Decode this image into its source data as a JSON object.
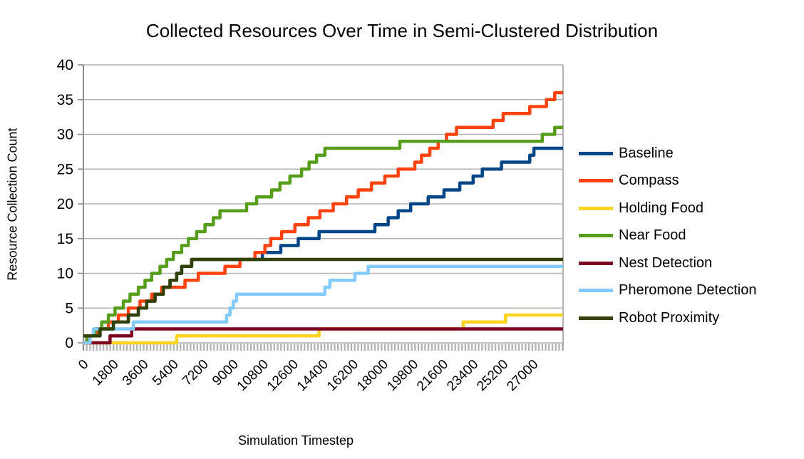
{
  "chart_data": {
    "type": "line",
    "subtype": "step",
    "title": "Collected Resources Over Time in Semi-Clustered Distribution",
    "xlabel": "Simulation Timestep",
    "ylabel": "Resource Collection Count",
    "xlim": [
      0,
      28800
    ],
    "ylim": [
      0,
      40
    ],
    "x_ticks": [
      0,
      1800,
      3600,
      5400,
      7200,
      9000,
      10800,
      12600,
      14400,
      16200,
      18000,
      19800,
      21600,
      23400,
      25200,
      27000
    ],
    "y_ticks": [
      0,
      5,
      10,
      15,
      20,
      25,
      30,
      35,
      40
    ],
    "grid": "horizontal",
    "legend_position": "right",
    "series": [
      {
        "name": "Baseline",
        "color": "#004586",
        "final_value": 28,
        "steps": [
          [
            0,
            1
          ],
          [
            1000,
            2
          ],
          [
            1800,
            3
          ],
          [
            2700,
            4
          ],
          [
            3300,
            5
          ],
          [
            3800,
            6
          ],
          [
            4300,
            7
          ],
          [
            4800,
            8
          ],
          [
            5200,
            9
          ],
          [
            5600,
            10
          ],
          [
            5900,
            11
          ],
          [
            6500,
            12
          ],
          [
            10750,
            13
          ],
          [
            11850,
            14
          ],
          [
            12900,
            15
          ],
          [
            14150,
            16
          ],
          [
            17500,
            17
          ],
          [
            18300,
            18
          ],
          [
            18900,
            19
          ],
          [
            19650,
            20
          ],
          [
            20700,
            21
          ],
          [
            21650,
            22
          ],
          [
            22600,
            23
          ],
          [
            23400,
            24
          ],
          [
            23950,
            25
          ],
          [
            25100,
            26
          ],
          [
            26800,
            27
          ],
          [
            27050,
            28
          ]
        ]
      },
      {
        "name": "Compass",
        "color": "#FF420E",
        "final_value": 36,
        "steps": [
          [
            0,
            0
          ],
          [
            300,
            1
          ],
          [
            800,
            2
          ],
          [
            1500,
            3
          ],
          [
            2100,
            4
          ],
          [
            2700,
            5
          ],
          [
            3400,
            6
          ],
          [
            4100,
            7
          ],
          [
            4700,
            8
          ],
          [
            6100,
            9
          ],
          [
            6900,
            10
          ],
          [
            8500,
            11
          ],
          [
            9400,
            12
          ],
          [
            10300,
            13
          ],
          [
            10900,
            14
          ],
          [
            11250,
            15
          ],
          [
            11900,
            16
          ],
          [
            12700,
            17
          ],
          [
            13500,
            18
          ],
          [
            14200,
            19
          ],
          [
            15000,
            20
          ],
          [
            15800,
            21
          ],
          [
            16500,
            22
          ],
          [
            17300,
            23
          ],
          [
            18100,
            24
          ],
          [
            18900,
            25
          ],
          [
            19900,
            26
          ],
          [
            20300,
            27
          ],
          [
            20800,
            28
          ],
          [
            21300,
            29
          ],
          [
            21800,
            30
          ],
          [
            22400,
            31
          ],
          [
            24600,
            32
          ],
          [
            25200,
            33
          ],
          [
            26800,
            34
          ],
          [
            27800,
            35
          ],
          [
            28300,
            36
          ]
        ]
      },
      {
        "name": "Holding Food",
        "color": "#FFD320",
        "final_value": 4,
        "steps": [
          [
            0,
            0
          ],
          [
            5600,
            1
          ],
          [
            14150,
            2
          ],
          [
            22800,
            3
          ],
          [
            25350,
            4
          ]
        ]
      },
      {
        "name": "Near Food",
        "color": "#579D1C",
        "final_value": 31,
        "steps": [
          [
            0,
            0
          ],
          [
            200,
            1
          ],
          [
            700,
            2
          ],
          [
            1100,
            3
          ],
          [
            1500,
            4
          ],
          [
            1900,
            5
          ],
          [
            2400,
            6
          ],
          [
            2800,
            7
          ],
          [
            3300,
            8
          ],
          [
            3700,
            9
          ],
          [
            4100,
            10
          ],
          [
            4600,
            11
          ],
          [
            5000,
            12
          ],
          [
            5400,
            13
          ],
          [
            5900,
            14
          ],
          [
            6300,
            15
          ],
          [
            6800,
            16
          ],
          [
            7300,
            17
          ],
          [
            7800,
            18
          ],
          [
            8200,
            19
          ],
          [
            9800,
            20
          ],
          [
            10400,
            21
          ],
          [
            11300,
            22
          ],
          [
            11800,
            23
          ],
          [
            12400,
            24
          ],
          [
            13100,
            25
          ],
          [
            13550,
            26
          ],
          [
            14000,
            27
          ],
          [
            14500,
            28
          ],
          [
            19000,
            29
          ],
          [
            27550,
            30
          ],
          [
            28300,
            31
          ]
        ]
      },
      {
        "name": "Nest Detection",
        "color": "#7E0021",
        "final_value": 2,
        "steps": [
          [
            0,
            0
          ],
          [
            1600,
            1
          ],
          [
            2900,
            2
          ]
        ]
      },
      {
        "name": "Pheromone Detection",
        "color": "#83CAFF",
        "final_value": 11,
        "steps": [
          [
            0,
            0
          ],
          [
            400,
            1
          ],
          [
            600,
            2
          ],
          [
            3000,
            3
          ],
          [
            8600,
            4
          ],
          [
            8800,
            5
          ],
          [
            9000,
            6
          ],
          [
            9200,
            7
          ],
          [
            14500,
            8
          ],
          [
            14800,
            9
          ],
          [
            16300,
            10
          ],
          [
            17100,
            11
          ]
        ]
      },
      {
        "name": "Robot Proximity",
        "color": "#314004",
        "final_value": 12,
        "steps": [
          [
            0,
            1
          ],
          [
            1000,
            2
          ],
          [
            1800,
            3
          ],
          [
            2700,
            4
          ],
          [
            3300,
            5
          ],
          [
            3800,
            6
          ],
          [
            4300,
            7
          ],
          [
            4800,
            8
          ],
          [
            5200,
            9
          ],
          [
            5600,
            10
          ],
          [
            5900,
            11
          ],
          [
            6500,
            12
          ]
        ]
      }
    ]
  },
  "style_colors": {
    "background": "#ffffff",
    "gridline": "#b3b3b3",
    "axis_line": "#8e8e8e",
    "tick_band": "#b3b3b3",
    "text": "#000000"
  }
}
